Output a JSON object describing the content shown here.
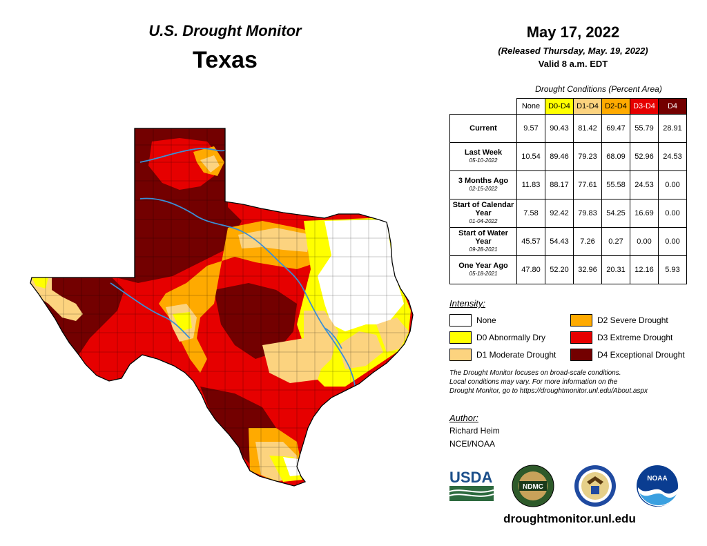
{
  "header": {
    "program": "U.S. Drought Monitor",
    "state": "Texas",
    "date": "May 17, 2022",
    "released": "(Released Thursday, May. 19, 2022)",
    "valid": "Valid 8 a.m. EDT"
  },
  "table": {
    "title": "Drought Conditions (Percent Area)",
    "columns": [
      "None",
      "D0-D4",
      "D1-D4",
      "D2-D4",
      "D3-D4",
      "D4"
    ],
    "column_colors": [
      "#ffffff",
      "#ffff00",
      "#fcd37f",
      "#ffaa00",
      "#e60000",
      "#730000"
    ],
    "rows": [
      {
        "label": "Current",
        "date": "",
        "values": [
          "9.57",
          "90.43",
          "81.42",
          "69.47",
          "55.79",
          "28.91"
        ]
      },
      {
        "label": "Last Week",
        "date": "05-10-2022",
        "values": [
          "10.54",
          "89.46",
          "79.23",
          "68.09",
          "52.96",
          "24.53"
        ]
      },
      {
        "label": "3 Months Ago",
        "date": "02-15-2022",
        "values": [
          "11.83",
          "88.17",
          "77.61",
          "55.58",
          "24.53",
          "0.00"
        ]
      },
      {
        "label": "Start of Calendar Year",
        "date": "01-04-2022",
        "values": [
          "7.58",
          "92.42",
          "79.83",
          "54.25",
          "16.69",
          "0.00"
        ]
      },
      {
        "label": "Start of Water Year",
        "date": "09-28-2021",
        "values": [
          "45.57",
          "54.43",
          "7.26",
          "0.27",
          "0.00",
          "0.00"
        ]
      },
      {
        "label": "One Year Ago",
        "date": "05-18-2021",
        "values": [
          "47.80",
          "52.20",
          "32.96",
          "20.31",
          "12.16",
          "5.93"
        ]
      }
    ]
  },
  "legend": {
    "title": "Intensity:",
    "items": [
      {
        "label": "None",
        "color": "#ffffff"
      },
      {
        "label": "D0 Abnormally Dry",
        "color": "#ffff00"
      },
      {
        "label": "D1 Moderate Drought",
        "color": "#fcd37f"
      },
      {
        "label": "D2 Severe Drought",
        "color": "#ffaa00"
      },
      {
        "label": "D3 Extreme Drought",
        "color": "#e60000"
      },
      {
        "label": "D4 Exceptional Drought",
        "color": "#730000"
      }
    ]
  },
  "note": {
    "line1": "The Drought Monitor focuses on broad-scale conditions.",
    "line2": "Local conditions may vary. For more information on the",
    "line3": "Drought Monitor, go to https://droughtmonitor.unl.edu/About.aspx"
  },
  "author": {
    "title": "Author:",
    "name": "Richard Heim",
    "org": "NCEI/NOAA"
  },
  "logos": {
    "usda": "USDA",
    "ndmc": "NDMC",
    "noaa": "NOAA"
  },
  "footer": {
    "url": "droughtmonitor.unl.edu"
  },
  "map": {
    "river_color": "#3a8fd6",
    "border_color": "#000000"
  }
}
